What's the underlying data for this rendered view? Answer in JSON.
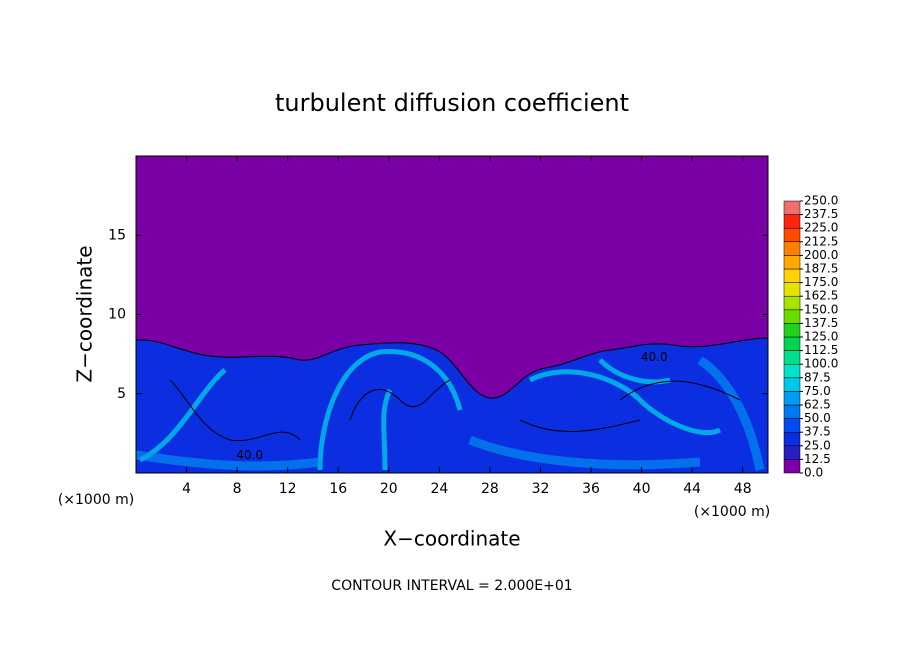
{
  "chart_data": {
    "type": "contour",
    "title": "turbulent diffusion coefficient",
    "xlabel": "X−coordinate",
    "ylabel": "Z−coordinate",
    "x_units": [
      "(×1000 m)",
      "(×1000 m)"
    ],
    "footer": "CONTOUR INTERVAL = 2.000E+01",
    "xlim": [
      0,
      50
    ],
    "ylim": [
      0,
      20
    ],
    "xticks": [
      4,
      8,
      12,
      16,
      20,
      24,
      28,
      32,
      36,
      40,
      44,
      48
    ],
    "yticks": [
      5,
      10,
      15
    ],
    "contour_labels": [
      {
        "text": "40.0",
        "x": 9,
        "z": 1.1
      },
      {
        "text": "40.0",
        "x": 41,
        "z": 7.3
      }
    ],
    "colorbar": {
      "levels": [
        {
          "value": 0,
          "label": "0.0"
        },
        {
          "value": 12.5,
          "label": "12.5"
        },
        {
          "value": 25,
          "label": "25.0"
        },
        {
          "value": 37.5,
          "label": "37.5"
        },
        {
          "value": 50,
          "label": "50.0"
        },
        {
          "value": 62.5,
          "label": "62.5"
        },
        {
          "value": 75,
          "label": "75.0"
        },
        {
          "value": 87.5,
          "label": "87.5"
        },
        {
          "value": 100,
          "label": "100.0"
        },
        {
          "value": 112.5,
          "label": "112.5"
        },
        {
          "value": 125,
          "label": "125.0"
        },
        {
          "value": 137.5,
          "label": "137.5"
        },
        {
          "value": 150,
          "label": "150.0"
        },
        {
          "value": 162.5,
          "label": "162.5"
        },
        {
          "value": 175,
          "label": "175.0"
        },
        {
          "value": 187.5,
          "label": "187.5"
        },
        {
          "value": 200,
          "label": "200.0"
        },
        {
          "value": 212.5,
          "label": "212.5"
        },
        {
          "value": 225,
          "label": "225.0"
        },
        {
          "value": 237.5,
          "label": "237.5"
        },
        {
          "value": 250,
          "label": "250.0"
        }
      ],
      "colors": [
        "#7a00a6",
        "#2a1ec0",
        "#0a2ee0",
        "#004cf2",
        "#0078f4",
        "#009cf2",
        "#00c8e8",
        "#00e4c8",
        "#00e08c",
        "#00d450",
        "#22d020",
        "#66dc00",
        "#a8e400",
        "#e4e400",
        "#ffd400",
        "#ffa800",
        "#ff8000",
        "#ff4a00",
        "#ff2410",
        "#f07070"
      ]
    }
  }
}
